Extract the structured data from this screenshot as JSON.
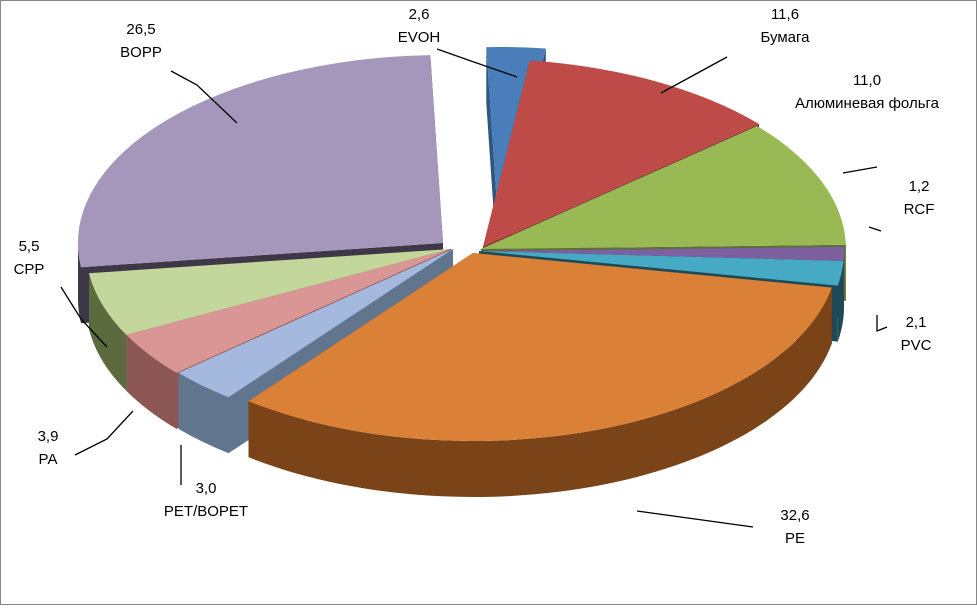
{
  "chart_data": {
    "type": "pie",
    "title": "",
    "slices": [
      {
        "label": "EVOH",
        "value_text": "2,6",
        "value": 2.6,
        "color": "#4A7EBB",
        "side_color": "#2F5680"
      },
      {
        "label": "Бумага",
        "value_text": "11,6",
        "value": 11.6,
        "color": "#BE4B48",
        "side_color": "#7A2B29"
      },
      {
        "label": "Алюминевая фольга",
        "value_text": "11,0",
        "value": 11.0,
        "color": "#98B954",
        "side_color": "#5B7330"
      },
      {
        "label": "RCF",
        "value_text": "1,2",
        "value": 1.2,
        "color": "#7D60A0",
        "side_color": "#4D3A63"
      },
      {
        "label": "PVC",
        "value_text": "2,1",
        "value": 2.1,
        "color": "#46AAC5",
        "side_color": "#1E4A57"
      },
      {
        "label": "PE",
        "value_text": "32,6",
        "value": 32.6,
        "color": "#DA8137",
        "side_color": "#7A4418"
      },
      {
        "label": "PET/BOPET",
        "value_text": "3,0",
        "value": 3.0,
        "color": "#A5B9DE",
        "side_color": "#61758E"
      },
      {
        "label": "PA",
        "value_text": "3,9",
        "value": 3.9,
        "color": "#D99694",
        "side_color": "#8C5654"
      },
      {
        "label": "CPP",
        "value_text": "5,5",
        "value": 5.5,
        "color": "#C3D69B",
        "side_color": "#5B6B3E"
      },
      {
        "label": "BOPP",
        "value_text": "26,5",
        "value": 26.5,
        "color": "#A596BC",
        "side_color": "#3E3748"
      }
    ],
    "legend": "none",
    "data_labels": "outside with leader lines",
    "style": "3D exploded pie"
  }
}
